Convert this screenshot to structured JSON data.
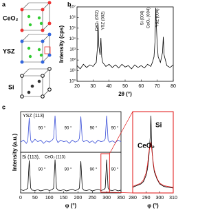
{
  "panels": [
    "a",
    "b",
    "c"
  ],
  "diagram": {
    "labels": [
      "CeO₂",
      "YSZ",
      "Si"
    ]
  },
  "chart_data": [
    {
      "type": "line",
      "log_y": true,
      "xlabel": "2θ (°)",
      "ylabel": "Intensity (cps)",
      "xlim": [
        20,
        80
      ],
      "xticks": [
        20,
        30,
        40,
        50,
        60,
        70,
        80
      ],
      "ylim": [
        1,
        10000000
      ],
      "yticks": [
        {
          "value": 1,
          "label": "10⁰"
        },
        {
          "value": 10,
          "label": "10¹"
        },
        {
          "value": 100,
          "label": "10²"
        },
        {
          "value": 1000,
          "label": "10³"
        },
        {
          "value": 10000,
          "label": "10⁴"
        },
        {
          "value": 100000,
          "label": "10⁵"
        },
        {
          "value": 1000000,
          "label": "10⁶"
        },
        {
          "value": 10000000,
          "label": "10⁷"
        }
      ],
      "x": [
        20,
        22,
        24,
        26,
        28,
        30,
        31,
        32,
        32.6,
        33.1,
        33.6,
        34.4,
        34.9,
        35.4,
        36,
        38,
        40,
        42,
        44,
        46,
        48,
        50,
        52,
        54,
        56,
        58,
        60,
        62,
        64,
        66,
        67,
        68,
        68.6,
        69.1,
        69.5,
        70,
        70.6,
        72,
        73.3,
        73.8,
        74.3,
        76,
        78,
        80
      ],
      "series": [
        {
          "color": "#000000",
          "values": [
            30,
            15,
            40,
            20,
            35,
            25,
            40,
            60,
            800,
            300000,
            2000,
            300,
            12000,
            200,
            60,
            25,
            40,
            20,
            35,
            18,
            40,
            22,
            30,
            15,
            35,
            20,
            30,
            18,
            40,
            25,
            60,
            200,
            5000,
            8000000,
            150000,
            3000,
            200,
            60,
            500,
            15000,
            300,
            30,
            20,
            35
          ]
        }
      ],
      "annotations": [
        {
          "text": "CeO₂ (002)",
          "color": "#e01010"
        },
        {
          "text": "YSZ (002)",
          "color": "#2a3fd0"
        },
        {
          "text": "Si (004)",
          "color": "#000000"
        },
        {
          "text": "CeO₂ (004)",
          "color": "#e01010"
        },
        {
          "text": "YSZ (004)",
          "color": "#2a3fd0"
        }
      ]
    },
    {
      "type": "line",
      "xlim": [
        0,
        350
      ],
      "ylim": [
        0,
        100
      ],
      "x": [
        0,
        10,
        20,
        25,
        30,
        35,
        40,
        50,
        60,
        70,
        80,
        90,
        100,
        110,
        115,
        120,
        125,
        130,
        140,
        150,
        160,
        170,
        180,
        190,
        200,
        205,
        210,
        215,
        220,
        230,
        240,
        250,
        260,
        270,
        280,
        290,
        295,
        300,
        305,
        310,
        320,
        330,
        340,
        350
      ],
      "series": [
        {
          "name": "YSZ (113)",
          "color": "#3a4fd8",
          "values": [
            25,
            30,
            22,
            28,
            85,
            30,
            24,
            32,
            26,
            30,
            22,
            28,
            25,
            30,
            35,
            90,
            32,
            24,
            30,
            26,
            28,
            22,
            30,
            25,
            28,
            34,
            88,
            30,
            26,
            30,
            24,
            28,
            22,
            30,
            26,
            28,
            33,
            90,
            30,
            25,
            28,
            24,
            30,
            26
          ]
        }
      ],
      "annotations": [
        {
          "text": "90 °"
        },
        {
          "text": "90 °"
        },
        {
          "text": "90 °"
        },
        {
          "text": "90 °"
        }
      ]
    },
    {
      "type": "line",
      "xlabel": "φ (°)",
      "ylabel": "Intensity (a.u.)",
      "xlim": [
        0,
        350
      ],
      "xticks": [
        0,
        50,
        100,
        150,
        200,
        250,
        300,
        350
      ],
      "ylim": [
        0,
        100
      ],
      "x": [
        0,
        10,
        20,
        25,
        30,
        35,
        40,
        50,
        60,
        70,
        80,
        90,
        100,
        110,
        115,
        120,
        125,
        130,
        140,
        150,
        160,
        170,
        180,
        190,
        200,
        205,
        210,
        215,
        220,
        230,
        240,
        250,
        260,
        270,
        280,
        290,
        295,
        300,
        305,
        310,
        320,
        330,
        340,
        350
      ],
      "series": [
        {
          "name": "Si (113),",
          "color": "#000000",
          "values": [
            8,
            6,
            9,
            12,
            80,
            12,
            7,
            6,
            8,
            5,
            7,
            9,
            6,
            8,
            12,
            82,
            12,
            7,
            6,
            8,
            5,
            7,
            9,
            6,
            8,
            12,
            78,
            12,
            7,
            6,
            8,
            5,
            7,
            9,
            6,
            8,
            12,
            82,
            12,
            7,
            6,
            8,
            5,
            7
          ]
        }
      ],
      "annotations": [
        {
          "text": "CeO₂ (113)",
          "color": "#e01010"
        },
        {
          "text": "90 °"
        },
        {
          "text": "90 °"
        },
        {
          "text": "90 °"
        },
        {
          "text": "90 °"
        }
      ]
    },
    {
      "type": "line",
      "xlabel": "φ (°)",
      "xlim": [
        280,
        310
      ],
      "xticks": [
        280,
        290,
        300,
        310
      ],
      "ylim": [
        0,
        100
      ],
      "x": [
        280,
        283,
        286,
        288,
        290,
        291,
        292,
        293,
        293.5,
        294,
        295,
        296,
        298,
        300,
        303,
        306,
        310
      ],
      "series": [
        {
          "name": "Si",
          "color": "#000000",
          "values": [
            7,
            9,
            11,
            14,
            22,
            30,
            45,
            70,
            95,
            60,
            38,
            26,
            17,
            11,
            8,
            7,
            6
          ]
        },
        {
          "name": "CeO₂",
          "color": "#e01010",
          "values": [
            8,
            10,
            12,
            16,
            25,
            35,
            50,
            60,
            62,
            55,
            40,
            28,
            18,
            12,
            9,
            8,
            7
          ]
        }
      ]
    }
  ]
}
